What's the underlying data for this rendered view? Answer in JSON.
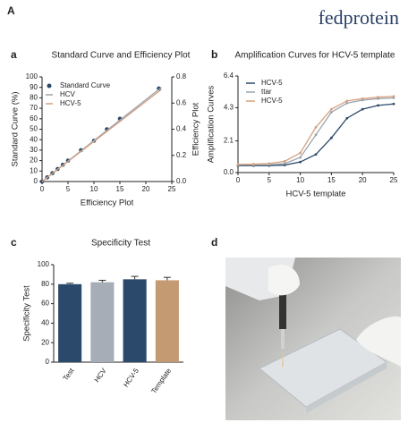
{
  "figure_label": "A",
  "brand": "fedprotein",
  "panels": [
    "a",
    "b",
    "c",
    "d"
  ],
  "chart_data": [
    {
      "type": "scatter",
      "title": "Standard Curve and Efficiency Plot",
      "x_label": "Efficiency Plot",
      "y_label": "Standard Curve (%)",
      "y2_label": "Efficiency Plot",
      "xlim": [
        0,
        25
      ],
      "xticks": [
        0,
        5,
        10,
        15,
        20,
        25
      ],
      "ylim": [
        0,
        100
      ],
      "yticks": [
        0,
        10,
        20,
        30,
        40,
        50,
        60,
        70,
        80,
        90,
        100
      ],
      "y2lim": [
        0,
        0.8
      ],
      "y2ticks": [
        {
          "value": 0,
          "label": "0.0"
        },
        0.2,
        0.4,
        0.6,
        0.8
      ],
      "legend": "upper left",
      "series": [
        {
          "name": "Standard Curve",
          "color": "#2b4a6b",
          "mode": "markers",
          "x": [
            0,
            1,
            2,
            3,
            4,
            5,
            7.5,
            10,
            12.5,
            15,
            22.5
          ],
          "values": [
            0,
            4,
            8,
            12,
            16,
            20,
            30,
            39,
            50,
            60,
            89
          ]
        },
        {
          "name": "HCV",
          "color": "#9aa3ad",
          "mode": "line",
          "x": [
            0,
            23
          ],
          "values": [
            0,
            90
          ]
        },
        {
          "name": "HCV-5",
          "color": "#d4a07f",
          "mode": "line",
          "x": [
            0,
            23
          ],
          "values": [
            0,
            88
          ]
        }
      ]
    },
    {
      "type": "line",
      "title": "Amplification Curves for HCV-5 template",
      "x_label": "HCV-5 template",
      "y_label": "Amplification Curves",
      "xlim": [
        0,
        25
      ],
      "xticks": [
        0,
        5,
        10,
        15,
        20,
        25
      ],
      "ylim": [
        0,
        6.4
      ],
      "yticks": [
        {
          "value": 0,
          "label": "0.0"
        },
        2.1,
        4.3,
        6.4
      ],
      "legend": "upper left",
      "x": [
        0,
        2.5,
        5,
        7.5,
        10,
        12.5,
        15,
        17.5,
        20,
        22.5,
        25
      ],
      "series": [
        {
          "name": "HCV-5",
          "color": "#2b4a6b",
          "values": [
            0.45,
            0.45,
            0.46,
            0.5,
            0.7,
            1.2,
            2.3,
            3.6,
            4.2,
            4.45,
            4.55
          ]
        },
        {
          "name": "ttar",
          "color": "#9aa3ad",
          "values": [
            0.5,
            0.5,
            0.52,
            0.6,
            1.0,
            2.5,
            4.0,
            4.6,
            4.8,
            4.9,
            4.95
          ]
        },
        {
          "name": "HCV-5",
          "color": "#d4a07f",
          "values": [
            0.55,
            0.56,
            0.6,
            0.75,
            1.3,
            3.0,
            4.2,
            4.75,
            4.9,
            5.0,
            5.05
          ]
        }
      ]
    },
    {
      "type": "bar",
      "title": "Specificity Test",
      "y_label": "Specificity Test",
      "categories": [
        "Test",
        "HCV",
        "HCV-5",
        "Template"
      ],
      "values": [
        80,
        82,
        85,
        84
      ],
      "errors": [
        1,
        2,
        3,
        3
      ],
      "colors": [
        "#2b4a6b",
        "#a7adb7",
        "#2b4a6b",
        "#c39a72"
      ],
      "ylim": [
        0,
        100
      ],
      "yticks": [
        0,
        20,
        40,
        60,
        80,
        100
      ]
    }
  ]
}
